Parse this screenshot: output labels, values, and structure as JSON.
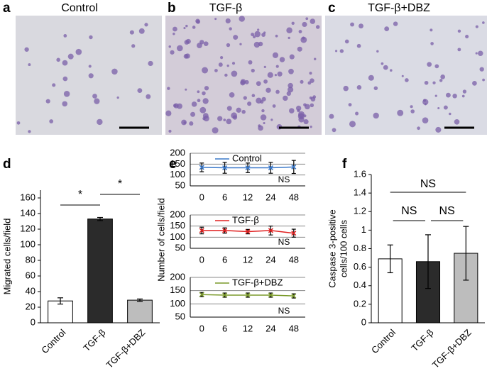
{
  "images": [
    {
      "label": "a",
      "title": "Control"
    },
    {
      "label": "b",
      "title": "TGF-β"
    },
    {
      "label": "c",
      "title": "TGF-β+DBZ"
    }
  ],
  "chart_data": [
    {
      "type": "bar",
      "label": "d",
      "ylabel": [
        "Migrated cells/field"
      ],
      "categories": [
        "Control",
        "TGF-β",
        "TGF-β+DBZ"
      ],
      "values": [
        28,
        133,
        29
      ],
      "errors": [
        4,
        2,
        1.5
      ],
      "colors": [
        "#ffffff",
        "#2b2b2b",
        "#bdbdbd"
      ],
      "ylim": [
        0,
        170
      ],
      "yticks": [
        0,
        20,
        40,
        60,
        80,
        100,
        120,
        140,
        160
      ],
      "annotations": [
        "*",
        "*"
      ]
    },
    {
      "type": "line",
      "label": "e",
      "categories": [
        "0",
        "6",
        "12",
        "24",
        "48"
      ],
      "series": [
        {
          "name": "Control",
          "color": "#3a78c9",
          "values": [
            135,
            133,
            133,
            133,
            137
          ],
          "errors": [
            20,
            25,
            22,
            25,
            30
          ]
        }
      ],
      "ylim": [
        50,
        200
      ],
      "yticks": [
        50,
        100,
        150,
        200
      ],
      "grid": true,
      "annotations": [
        "NS"
      ]
    },
    {
      "type": "line",
      "ylabel": [
        "Number of cells/field"
      ],
      "categories": [
        "0",
        "6",
        "12",
        "24",
        "48"
      ],
      "series": [
        {
          "name": "TGF-β",
          "color": "#e02020",
          "values": [
            130,
            130,
            125,
            130,
            118
          ],
          "errors": [
            15,
            12,
            10,
            20,
            18
          ]
        }
      ],
      "ylim": [
        50,
        200
      ],
      "yticks": [
        50,
        100,
        150,
        200
      ],
      "grid": true,
      "annotations": [
        "NS"
      ]
    },
    {
      "type": "line",
      "categories": [
        "0",
        "6",
        "12",
        "24",
        "48"
      ],
      "series": [
        {
          "name": "TGF-β+DBZ",
          "color": "#7a9a2a",
          "values": [
            135,
            133,
            133,
            133,
            130
          ],
          "errors": [
            8,
            8,
            8,
            8,
            8
          ]
        }
      ],
      "ylim": [
        50,
        200
      ],
      "yticks": [
        50,
        100,
        150,
        200
      ],
      "grid": true,
      "annotations": [
        "NS"
      ]
    },
    {
      "type": "bar",
      "label": "f",
      "ylabel": [
        "Caspase 3-positive",
        "cells/100 cells"
      ],
      "categories": [
        "Control",
        "TGF-β",
        "TGF-β+DBZ"
      ],
      "values": [
        0.69,
        0.66,
        0.75
      ],
      "errors": [
        0.15,
        0.29,
        0.29
      ],
      "colors": [
        "#ffffff",
        "#2b2b2b",
        "#bdbdbd"
      ],
      "ylim": [
        0,
        1.6
      ],
      "yticks": [
        0,
        0.2,
        0.4,
        0.6,
        0.8,
        1,
        1.2,
        1.4,
        1.6
      ],
      "annotations": [
        "NS",
        "NS",
        "NS"
      ]
    }
  ]
}
